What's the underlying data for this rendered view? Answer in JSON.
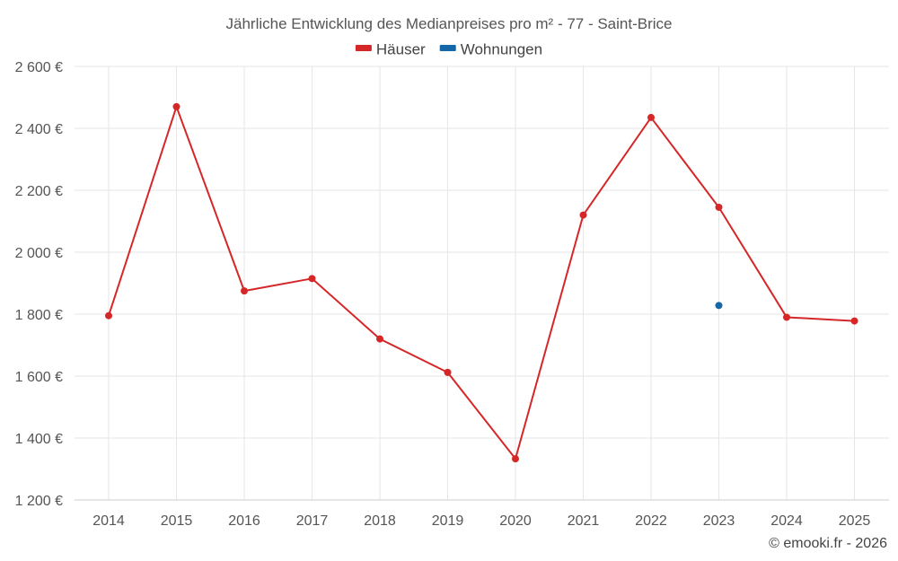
{
  "chart_data": {
    "type": "line",
    "title": "Jährliche Entwicklung des Medianpreises pro m² - 77 - Saint-Brice",
    "categories": [
      "2014",
      "2015",
      "2016",
      "2017",
      "2018",
      "2019",
      "2020",
      "2021",
      "2022",
      "2023",
      "2024",
      "2025"
    ],
    "series": [
      {
        "name": "Häuser",
        "color": "#d62728",
        "values": [
          1795,
          2470,
          1875,
          1915,
          1720,
          1612,
          1333,
          2120,
          2435,
          2145,
          1790,
          1778
        ]
      },
      {
        "name": "Wohnungen",
        "color": "#1467a8",
        "values": [
          null,
          null,
          null,
          null,
          null,
          null,
          null,
          null,
          null,
          1828,
          null,
          null
        ]
      }
    ],
    "ylim": [
      1200,
      2600
    ],
    "yticks": [
      1200,
      1400,
      1600,
      1800,
      2000,
      2200,
      2400,
      2600
    ],
    "ytick_labels": [
      "1 200 €",
      "1 400 €",
      "1 600 €",
      "1 800 €",
      "2 000 €",
      "2 200 €",
      "2 400 €",
      "2 600 €"
    ],
    "xlabel": "",
    "ylabel": "",
    "grid": true,
    "legend_position": "top-center"
  },
  "credit": "© emooki.fr - 2026"
}
